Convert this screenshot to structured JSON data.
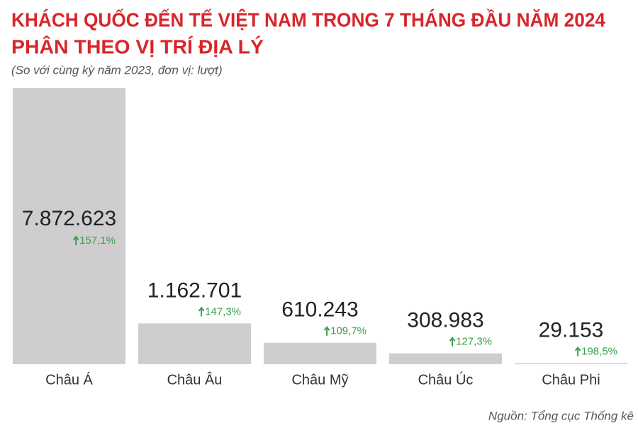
{
  "chart_data": {
    "type": "bar",
    "title": [
      "KHÁCH QUỐC ĐẾN TẾ VIỆT NAM TRONG 7 THÁNG ĐẦU NĂM 2024",
      "PHÂN THEO VỊ TRÍ ĐỊA LÝ"
    ],
    "subtitle": "(So với cùng kỳ năm 2023, đơn vị: lượt)",
    "categories": [
      "Châu Á",
      "Châu Âu",
      "Châu Mỹ",
      "Châu Úc",
      "Châu Phi"
    ],
    "values": [
      7872623,
      1162701,
      610243,
      308983,
      29153
    ],
    "value_labels": [
      "7.872.623",
      "1.162.701",
      "610.243",
      "308.983",
      "29.153"
    ],
    "growth": {
      "values": [
        157.1,
        147.3,
        109.7,
        127.3,
        198.5
      ],
      "value_labels": [
        "157,1%",
        "147,3%",
        "109,7%",
        "127,3%",
        "198,5%"
      ],
      "color": "#3a9f4f"
    },
    "color": "#cfcdcf",
    "source": "Nguồn: Tổng cục Thống kê"
  }
}
